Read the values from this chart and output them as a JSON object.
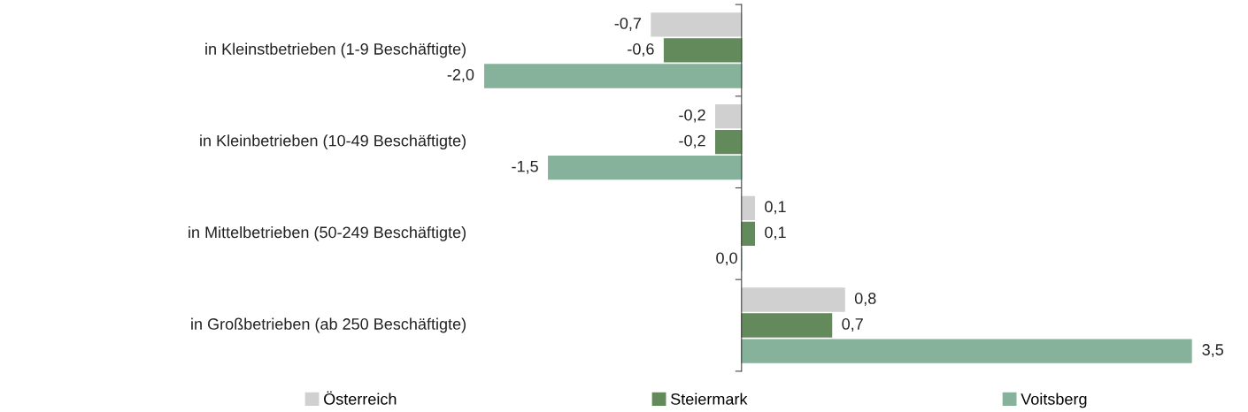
{
  "chart_data": {
    "type": "bar",
    "orientation": "horizontal",
    "categories": [
      "in Kleinstbetrieben (1-9 Beschäftigte)",
      "in Kleinbetrieben (10-49 Beschäftigte)",
      "in Mittelbetrieben (50-249 Beschäftigte)",
      "in Großbetrieben (ab 250 Beschäftigte)"
    ],
    "series": [
      {
        "name": "Österreich",
        "color": "#d0d0d0",
        "values": [
          -0.7,
          -0.2,
          0.1,
          0.8
        ],
        "value_labels": [
          "-0,7",
          "-0,2",
          "0,1",
          "0,8"
        ]
      },
      {
        "name": "Steiermark",
        "color": "#638a5a",
        "values": [
          -0.6,
          -0.2,
          0.1,
          0.7
        ],
        "value_labels": [
          "-0,6",
          "-0,2",
          "0,1",
          "0,7"
        ]
      },
      {
        "name": "Voitsberg",
        "color": "#86b29b",
        "values": [
          -2.0,
          -1.5,
          0.0,
          3.5
        ],
        "value_labels": [
          "-2,0",
          "-1,5",
          "0,0",
          "3,5"
        ]
      }
    ],
    "xlim": [
      -2.0,
      3.5
    ],
    "grid": false,
    "legend": "bottom"
  }
}
